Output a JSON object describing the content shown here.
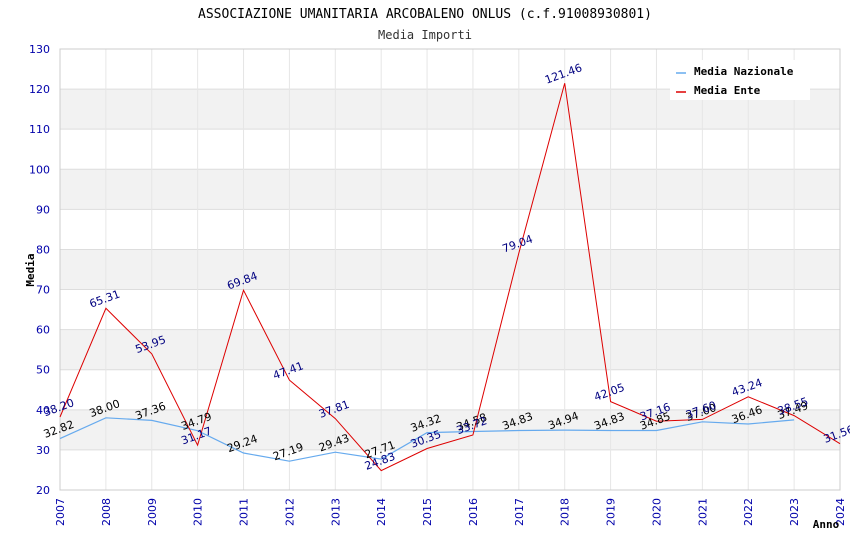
{
  "chart_data": {
    "type": "line",
    "title": "ASSOCIAZIONE UMANITARIA ARCOBALENO ONLUS (c.f.91008930801)",
    "subtitle": "Media Importi",
    "xlabel": "Anno",
    "ylabel": "Media",
    "ylim": [
      20,
      130
    ],
    "yticks": [
      20,
      30,
      40,
      50,
      60,
      70,
      80,
      90,
      100,
      110,
      120,
      130
    ],
    "categories": [
      "2007",
      "2008",
      "2009",
      "2010",
      "2011",
      "2012",
      "2013",
      "2014",
      "2015",
      "2016",
      "2017",
      "2018",
      "2019",
      "2020",
      "2021",
      "2022",
      "2023",
      "2024"
    ],
    "legend_position": "top-right",
    "grid": true,
    "series": [
      {
        "name": "Media Nazionale",
        "color": "#66aaee",
        "values": [
          32.82,
          38.0,
          37.36,
          34.79,
          29.24,
          27.19,
          29.43,
          27.71,
          34.32,
          34.58,
          34.83,
          34.94,
          34.83,
          34.85,
          37.0,
          36.46,
          37.49,
          null
        ],
        "labels": [
          "32.82",
          "38.00",
          "37.36",
          "34.79",
          "29.24",
          "27.19",
          "29.43",
          "27.71",
          "34.32",
          "34.58",
          "34.83",
          "34.94",
          "34.83",
          "34.85",
          "37.00",
          "36.46",
          "37.49",
          ""
        ]
      },
      {
        "name": "Media Ente",
        "color": "#dd0000",
        "values": [
          38.2,
          65.31,
          53.95,
          31.17,
          69.84,
          47.41,
          37.81,
          24.83,
          30.35,
          33.72,
          79.04,
          121.46,
          42.05,
          37.16,
          37.6,
          43.24,
          38.55,
          31.56
        ],
        "labels": [
          "38.20",
          "65.31",
          "53.95",
          "31.17",
          "69.84",
          "47.41",
          "37.81",
          "24.83",
          "30.35",
          "33.72",
          "79.04",
          "121.46",
          "42.05",
          "37.16",
          "37.60",
          "43.24",
          "38.55",
          "31.56"
        ]
      }
    ]
  }
}
